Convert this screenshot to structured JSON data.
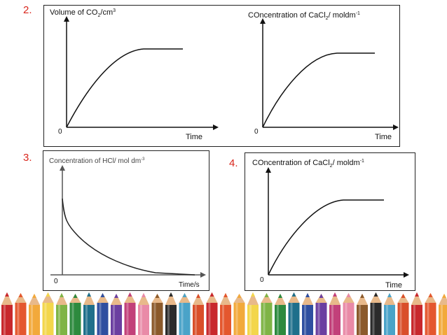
{
  "slide": {
    "numbers": [
      "2.",
      "3.",
      "4."
    ]
  },
  "graphs": {
    "volume_co2": {
      "title_pre": "Volume of CO",
      "title_sub": "2",
      "title_post": "/cm",
      "title_sup": "3",
      "origin": "0",
      "x_label": "Time"
    },
    "conc_cacl2_top": {
      "title_pre": "COncentration of CaCl",
      "title_sub": "2",
      "title_post": "/ moldm",
      "title_sup": "-1",
      "origin": "0",
      "x_label": "Time"
    },
    "conc_hcl": {
      "title_pre": "Concentration of HCl/ mol dm",
      "title_sup": "-3",
      "origin": "0",
      "x_label": "Time/s"
    },
    "conc_cacl2_bottom": {
      "title_pre": "COncentration of CaCl",
      "title_sub": "2",
      "title_post": "/ moldm",
      "title_sup": "-1",
      "origin": "0",
      "x_label": "Time"
    }
  },
  "decoration": {
    "pencil_colors": [
      "#c8282d",
      "#e4572e",
      "#f2a93b",
      "#f3d64b",
      "#7fb446",
      "#2d8a3e",
      "#1f6f8b",
      "#2f4fa0",
      "#6b3fa0",
      "#c2407a",
      "#e98aa7",
      "#8b5a2b",
      "#2b2b2b",
      "#4aa3c8",
      "#d94f2a"
    ]
  }
}
